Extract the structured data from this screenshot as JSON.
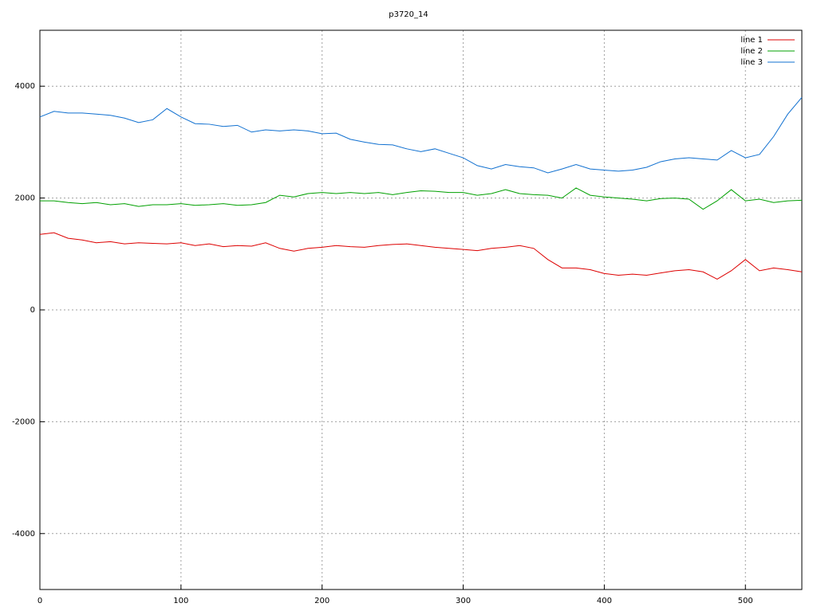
{
  "chart_data": {
    "type": "line",
    "title": "p3720_14",
    "x": [
      0,
      10,
      20,
      30,
      40,
      50,
      60,
      70,
      80,
      90,
      100,
      110,
      120,
      130,
      140,
      150,
      160,
      170,
      180,
      190,
      200,
      210,
      220,
      230,
      240,
      250,
      260,
      270,
      280,
      290,
      300,
      310,
      320,
      330,
      340,
      350,
      360,
      370,
      380,
      390,
      400,
      410,
      420,
      430,
      440,
      450,
      460,
      470,
      480,
      490,
      500,
      510,
      520,
      530,
      540
    ],
    "series": [
      {
        "name": "line 1",
        "color": "#dd0000",
        "values": [
          1350,
          1380,
          1280,
          1250,
          1200,
          1220,
          1180,
          1200,
          1190,
          1180,
          1200,
          1150,
          1180,
          1130,
          1150,
          1140,
          1200,
          1100,
          1050,
          1100,
          1120,
          1150,
          1130,
          1120,
          1150,
          1170,
          1180,
          1150,
          1120,
          1100,
          1080,
          1060,
          1100,
          1120,
          1150,
          1100,
          900,
          750,
          750,
          720,
          650,
          620,
          640,
          620,
          660,
          700,
          720,
          680,
          550,
          700,
          900,
          700,
          750,
          720,
          680
        ]
      },
      {
        "name": "line 2",
        "color": "#00a000",
        "values": [
          1950,
          1950,
          1920,
          1900,
          1920,
          1880,
          1900,
          1850,
          1880,
          1880,
          1900,
          1870,
          1880,
          1900,
          1870,
          1880,
          1920,
          2050,
          2020,
          2080,
          2100,
          2080,
          2100,
          2080,
          2100,
          2060,
          2100,
          2130,
          2120,
          2100,
          2100,
          2050,
          2080,
          2150,
          2080,
          2060,
          2050,
          2000,
          2180,
          2050,
          2020,
          2000,
          1980,
          1950,
          1990,
          2000,
          1980,
          1800,
          1950,
          2150,
          1950,
          1980,
          1920,
          1950,
          1960
        ]
      },
      {
        "name": "line 3",
        "color": "#1070d0",
        "values": [
          3450,
          3550,
          3520,
          3520,
          3500,
          3480,
          3430,
          3350,
          3400,
          3600,
          3450,
          3330,
          3320,
          3280,
          3300,
          3180,
          3220,
          3200,
          3220,
          3200,
          3150,
          3160,
          3050,
          3000,
          2960,
          2950,
          2880,
          2830,
          2880,
          2800,
          2720,
          2580,
          2520,
          2600,
          2560,
          2540,
          2450,
          2520,
          2600,
          2520,
          2500,
          2480,
          2500,
          2550,
          2650,
          2700,
          2720,
          2700,
          2680,
          2850,
          2720,
          2780,
          3100,
          3500,
          3800
        ]
      }
    ],
    "xlim": [
      0,
      540
    ],
    "xticks": [
      0,
      100,
      200,
      300,
      400,
      500
    ],
    "ylim": [
      -5000,
      5000
    ],
    "yticks": [
      -4000,
      -2000,
      0,
      2000,
      4000
    ],
    "grid": true,
    "legend": "top-right"
  }
}
